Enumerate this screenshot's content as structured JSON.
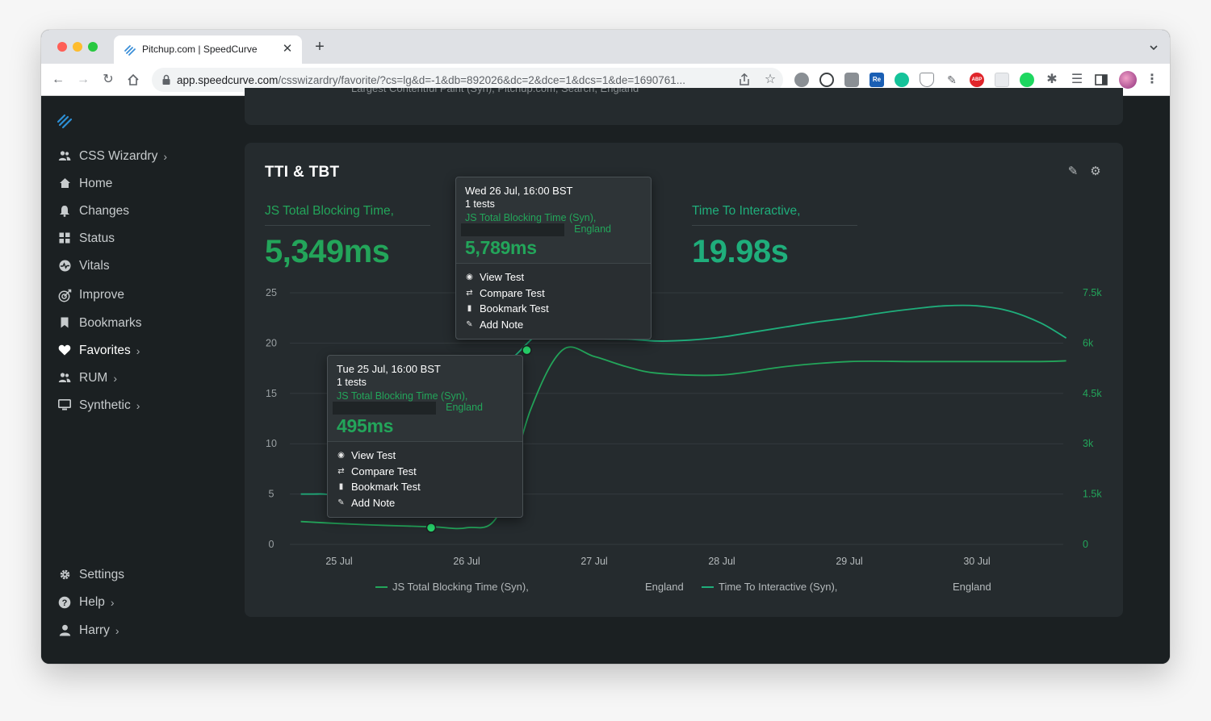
{
  "browser": {
    "tab_title": "Pitchup.com | SpeedCurve",
    "url_host": "app.speedcurve.com",
    "url_path": "/csswizardry/favorite/?cs=lg&d=-1&db=892026&dc=2&dce=1&dcs=1&de=1690761..."
  },
  "sidebar": {
    "items": [
      {
        "label": "CSS Wizardry",
        "icon": "users-icon",
        "chevron": true
      },
      {
        "label": "Home",
        "icon": "home-icon",
        "chevron": false
      },
      {
        "label": "Changes",
        "icon": "bell-icon",
        "chevron": false
      },
      {
        "label": "Status",
        "icon": "grid-icon",
        "chevron": false
      },
      {
        "label": "Vitals",
        "icon": "heartbeat-icon",
        "chevron": false
      },
      {
        "label": "Improve",
        "icon": "target-icon",
        "chevron": false
      },
      {
        "label": "Bookmarks",
        "icon": "bookmark-icon",
        "chevron": false
      },
      {
        "label": "Favorites",
        "icon": "heart-icon",
        "chevron": true
      },
      {
        "label": "RUM",
        "icon": "users-icon",
        "chevron": true
      },
      {
        "label": "Synthetic",
        "icon": "monitor-icon",
        "chevron": true
      }
    ],
    "bottom_items": [
      {
        "label": "Settings",
        "icon": "gear-icon",
        "chevron": false
      },
      {
        "label": "Help",
        "icon": "help-icon",
        "chevron": true
      },
      {
        "label": "Harry",
        "icon": "user-icon",
        "chevron": true
      }
    ]
  },
  "previous_card": {
    "legend": "Largest Contentful Paint (Syn), Pitchup.com, Search, England"
  },
  "card": {
    "title": "TTI & TBT",
    "metric_tbt": {
      "label": "JS Total Blocking Time,",
      "value": "5,349ms"
    },
    "metric_tti": {
      "label": "Time To Interactive,",
      "value": "19.98s"
    },
    "legend": {
      "tbt_label": "JS Total Blocking Time (Syn),",
      "tbt_region": "England",
      "tti_label": "Time To Interactive (Syn),",
      "tti_region": "England"
    }
  },
  "tooltips": [
    {
      "date": "Wed 26 Jul, 16:00 BST",
      "tests": "1 tests",
      "series": "JS Total Blocking Time (Syn),",
      "region": "England",
      "value": "5,789ms",
      "actions": [
        "View Test",
        "Compare Test",
        "Bookmark Test",
        "Add Note"
      ]
    },
    {
      "date": "Tue 25 Jul, 16:00 BST",
      "tests": "1 tests",
      "series": "JS Total Blocking Time (Syn),",
      "region": "England",
      "value": "495ms",
      "actions": [
        "View Test",
        "Compare Test",
        "Bookmark Test",
        "Add Note"
      ]
    }
  ],
  "chart_data": {
    "type": "line",
    "x_ticks": [
      "25 Jul",
      "26 Jul",
      "27 Jul",
      "28 Jul",
      "29 Jul",
      "30 Jul"
    ],
    "y_left_ticks": [
      "0",
      "5",
      "10",
      "15",
      "20",
      "25"
    ],
    "y_right_ticks": [
      "0",
      "1.5k",
      "3k",
      "4.5k",
      "6k",
      "7.5k"
    ],
    "y_left_range": [
      0,
      25
    ],
    "y_right_range": [
      0,
      7500
    ],
    "grid": true,
    "legend_position": "bottom",
    "colors": {
      "tbt": "#23a55a",
      "tti": "#1fae7b"
    },
    "series": [
      {
        "name": "JS Total Blocking Time (Syn), England",
        "axis": "right",
        "x_day": [
          24.7,
          25.0,
          25.25,
          25.5,
          25.75,
          26.0,
          26.25,
          26.5,
          26.75,
          27.0,
          27.25,
          27.5,
          28.0,
          28.5,
          29.0,
          29.5,
          30.0,
          30.5,
          30.7
        ],
        "values": [
          680,
          620,
          580,
          550,
          520,
          495,
          900,
          4000,
          5789,
          5600,
          5300,
          5100,
          5050,
          5300,
          5450,
          5450,
          5450,
          5450,
          5470
        ]
      },
      {
        "name": "Time To Interactive (Syn), England",
        "axis": "left",
        "x_day": [
          24.7,
          24.8,
          24.88,
          24.95,
          25.0,
          25.2,
          25.4,
          25.55,
          25.7,
          25.8,
          26.0,
          26.2,
          26.4,
          26.55,
          26.7,
          26.85,
          27.0,
          27.25,
          27.5,
          27.75,
          28.0,
          28.25,
          28.5,
          28.75,
          29.0,
          29.25,
          29.5,
          29.75,
          30.0,
          30.25,
          30.5,
          30.7
        ],
        "values": [
          5.0,
          5.0,
          5.0,
          4.9,
          4.8,
          4.8,
          5.2,
          6.2,
          8.0,
          10.0,
          13.0,
          16.5,
          19.0,
          20.8,
          21.5,
          21.2,
          20.5,
          20.4,
          20.2,
          20.3,
          20.6,
          21.1,
          21.6,
          22.1,
          22.5,
          23.0,
          23.4,
          23.7,
          23.7,
          23.2,
          22.0,
          20.5
        ]
      }
    ]
  }
}
